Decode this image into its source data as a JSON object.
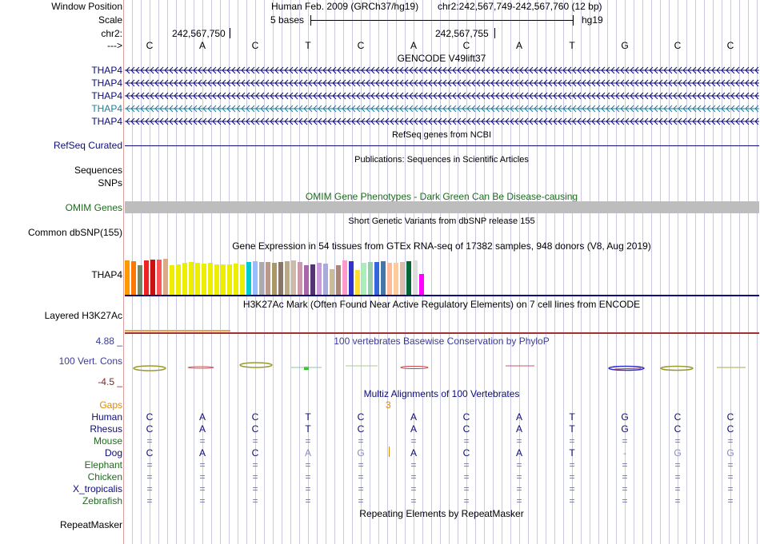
{
  "labels": {
    "window_position": "Window Position",
    "scale": "Scale",
    "chr": "chr2:",
    "arrow": "--->",
    "refseq": "RefSeq Curated",
    "sequences": "Sequences",
    "snps": "SNPs",
    "omim": "OMIM Genes",
    "dbsnp": "Common dbSNP(155)",
    "gtex_gene": "THAP4",
    "h3k27": "Layered H3K27Ac",
    "phylop_max": "4.88 _",
    "cons": "100 Vert. Cons",
    "phylop_min": "-4.5 _",
    "repeatmasker": "RepeatMasker"
  },
  "header": {
    "assembly": "Human Feb. 2009 (GRCh37/hg19)",
    "position": "chr2:242,567,749-242,567,760 (12 bp)",
    "scale_bases": "5 bases",
    "scale_db": "hg19",
    "coord_left": "242,567,750",
    "coord_right": "242,567,755"
  },
  "bases": [
    "C",
    "A",
    "C",
    "T",
    "C",
    "A",
    "C",
    "A",
    "T",
    "G",
    "C",
    "C"
  ],
  "track_titles": {
    "gencode": "GENCODE V49lift37",
    "refseq": "RefSeq genes from NCBI",
    "pubs": "Publications: Sequences in Scientific Articles",
    "omim": "OMIM Gene Phenotypes - Dark Green Can Be Disease-causing",
    "dbsnp": "Short Genetic Variants from dbSNP release 155",
    "gtex": "Gene Expression in 54 tissues from GTEx RNA-seq of 17382 samples, 948 donors (V8, Aug 2019)",
    "h3k27": "H3K27Ac Mark (Often Found Near Active Regulatory Elements) on 7 cell lines from ENCODE",
    "phylop": "100 vertebrates Basewise Conservation by PhyloP",
    "multiz": "Multiz Alignments of 100 Vertebrates",
    "repeat": "Repeating Elements by RepeatMasker"
  },
  "gencode_genes": [
    {
      "name": "THAP4",
      "color": "#0c0c78"
    },
    {
      "name": "THAP4",
      "color": "#0c0c78"
    },
    {
      "name": "THAP4",
      "color": "#0c0c78"
    },
    {
      "name": "THAP4",
      "color": "#1d7d9b"
    },
    {
      "name": "THAP4",
      "color": "#0c0c78"
    }
  ],
  "gtex_colors": [
    "#ff9900",
    "#ff7700",
    "#778866",
    "#ee2222",
    "#cc1111",
    "#ff5555",
    "#ddaa88",
    "#eeee00",
    "#eeee00",
    "#eeee00",
    "#eeee00",
    "#eeee00",
    "#eeee00",
    "#eeee00",
    "#eeee00",
    "#eeee00",
    "#eeee00",
    "#eeee00",
    "#eeee00",
    "#00cccc",
    "#99bbff",
    "#aaaaaa",
    "#bb9988",
    "#aa9966",
    "#887766",
    "#bbaa88",
    "#ccbbaa",
    "#cc99aa",
    "#aa66aa",
    "#553377",
    "#cc99dd",
    "#aaaadd",
    "#ccbb99",
    "#aa8877",
    "#ff99cc",
    "#3333cc",
    "#ffdd33",
    "#aaeebb",
    "#99ccaa",
    "#3366dd",
    "#4477aa",
    "#ffbb99",
    "#ffcc99",
    "#ddbbaa",
    "#006633",
    "#dddddd",
    "#ff00ff"
  ],
  "gtex_values": [
    0.82,
    0.8,
    0.72,
    0.82,
    0.84,
    0.85,
    0.86,
    0.72,
    0.74,
    0.76,
    0.78,
    0.77,
    0.75,
    0.76,
    0.74,
    0.73,
    0.74,
    0.75,
    0.73,
    0.78,
    0.8,
    0.78,
    0.79,
    0.76,
    0.78,
    0.8,
    0.82,
    0.79,
    0.72,
    0.73,
    0.76,
    0.75,
    0.62,
    0.71,
    0.82,
    0.8,
    0.6,
    0.76,
    0.78,
    0.78,
    0.8,
    0.77,
    0.76,
    0.79,
    0.8,
    0.82,
    0.5
  ],
  "phylop": {
    "max": 4.88,
    "min": -4.5
  },
  "multiz": {
    "gaps_label": "Gaps",
    "gap_value": "3",
    "species": [
      {
        "name": "Human",
        "color": "#0c0c78",
        "seq": [
          "C",
          "A",
          "C",
          "T",
          "C",
          "A",
          "C",
          "A",
          "T",
          "G",
          "C",
          "C"
        ],
        "seq_color": "#0c0c78"
      },
      {
        "name": "Rhesus",
        "color": "#0c0c78",
        "seq": [
          "C",
          "A",
          "C",
          "T",
          "C",
          "A",
          "C",
          "A",
          "T",
          "G",
          "C",
          "C"
        ],
        "seq_color": "#0c0c78"
      },
      {
        "name": "Mouse",
        "color": "#1d6b1d",
        "seq": [
          "=",
          "=",
          "=",
          "=",
          "=",
          "=",
          "=",
          "=",
          "=",
          "=",
          "=",
          "="
        ],
        "seq_color": "#6f6fae"
      },
      {
        "name": "Dog",
        "color": "#0c0c78",
        "seq": [
          "C",
          "A",
          "C",
          "A",
          "G",
          "A",
          "C",
          "A",
          "T",
          "-",
          "G",
          "G"
        ],
        "seq_color": "#0c0c78"
      },
      {
        "name": "Elephant",
        "color": "#1d6b1d",
        "seq": [
          "=",
          "=",
          "=",
          "=",
          "=",
          "=",
          "=",
          "=",
          "=",
          "=",
          "=",
          "="
        ],
        "seq_color": "#6f6fae"
      },
      {
        "name": "Chicken",
        "color": "#1d6b1d",
        "seq": [
          "=",
          "=",
          "=",
          "=",
          "=",
          "=",
          "=",
          "=",
          "=",
          "=",
          "=",
          "="
        ],
        "seq_color": "#6f6fae"
      },
      {
        "name": "X_tropicalis",
        "color": "#0c0c78",
        "seq": [
          "=",
          "=",
          "=",
          "=",
          "=",
          "=",
          "=",
          "=",
          "=",
          "=",
          "=",
          "="
        ],
        "seq_color": "#6f6fae"
      },
      {
        "name": "Zebrafish",
        "color": "#1d6b1d",
        "seq": [
          "=",
          "=",
          "=",
          "=",
          "=",
          "=",
          "=",
          "=",
          "=",
          "=",
          "=",
          "="
        ],
        "seq_color": "#6f6fae"
      }
    ]
  },
  "colors": {
    "navy": "#0c0c78",
    "green": "#1d6b1d",
    "omim_green": "#1d6b1d",
    "orange": "#e08a00",
    "h3k27": "#c0502f",
    "phylop_title": "#3b3b9a"
  }
}
